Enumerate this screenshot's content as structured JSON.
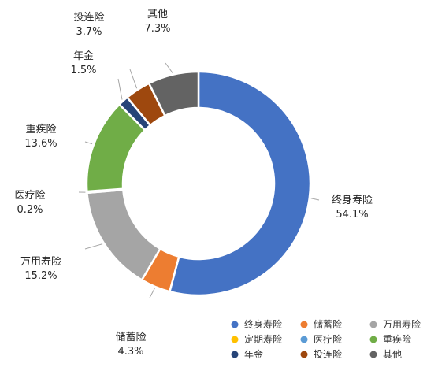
{
  "chart_data": {
    "type": "pie",
    "donut": true,
    "title": "",
    "legend_position": "bottom-right",
    "slices": [
      {
        "name": "终身寿险",
        "value": 54.1,
        "label": "54.1%",
        "color": "#4472C4"
      },
      {
        "name": "储蓄险",
        "value": 4.3,
        "label": "4.3%",
        "color": "#ED7D31"
      },
      {
        "name": "万用寿险",
        "value": 15.2,
        "label": "15.2%",
        "color": "#A5A5A5"
      },
      {
        "name": "定期寿险",
        "value": 0.0,
        "label": "",
        "color": "#FFC000"
      },
      {
        "name": "医疗险",
        "value": 0.2,
        "label": "0.2%",
        "color": "#5B9BD5"
      },
      {
        "name": "重疾险",
        "value": 13.6,
        "label": "13.6%",
        "color": "#70AD47"
      },
      {
        "name": "年金",
        "value": 1.5,
        "label": "1.5%",
        "color": "#264478"
      },
      {
        "name": "投连险",
        "value": 3.7,
        "label": "3.7%",
        "color": "#9E480E"
      },
      {
        "name": "其他",
        "value": 7.3,
        "label": "7.3%",
        "color": "#636363"
      }
    ]
  }
}
